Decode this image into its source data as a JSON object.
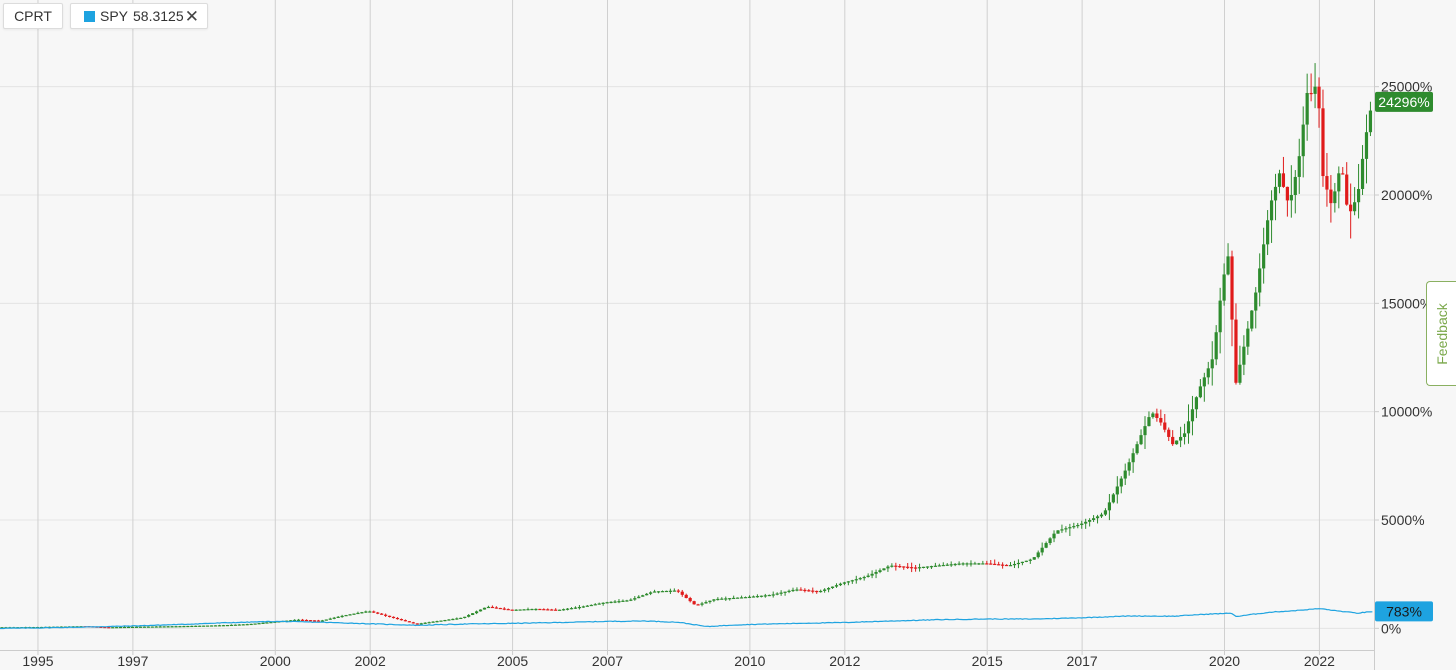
{
  "header": {
    "primary_symbol": "CPRT",
    "compare_symbol": "SPY",
    "compare_value": "58.3125",
    "compare_color": "#1ea3e0",
    "close_icon": "close-icon"
  },
  "feedback_label": "Feedback",
  "colors": {
    "up": "#2e8b2e",
    "down": "#e01b1b",
    "spy_line": "#1ea3e0",
    "grid": "#e4e4e4",
    "vgrid": "#d0d0d0",
    "axis": "#cccccc",
    "text": "#333333"
  },
  "chart_data": {
    "type": "candlestick",
    "series": [
      {
        "name": "CPRT",
        "last_label": "24296%",
        "last_value": 24296
      },
      {
        "name": "SPY",
        "last_label": "783%",
        "last_value": 783
      }
    ],
    "x_ticks": [
      "1995",
      "1997",
      "2000",
      "2002",
      "2005",
      "2007",
      "2010",
      "2012",
      "2015",
      "2017",
      "2020",
      "2022"
    ],
    "x_tick_years": [
      1995.0,
      1997.0,
      2000.0,
      2002.0,
      2005.0,
      2007.0,
      2010.0,
      2012.0,
      2015.0,
      2017.0,
      2020.0,
      2022.0
    ],
    "x_range": [
      1994.2,
      2023.15
    ],
    "y_ticks": [
      "0%",
      "5000%",
      "10000%",
      "15000%",
      "20000%",
      "25000%"
    ],
    "y_tick_values": [
      0,
      5000,
      10000,
      15000,
      20000,
      25000
    ],
    "y_range": [
      -1000,
      29000
    ],
    "cprt_path": [
      [
        1994.2,
        50
      ],
      [
        1995.0,
        60
      ],
      [
        1996.0,
        100
      ],
      [
        1996.5,
        50
      ],
      [
        1997.0,
        70
      ],
      [
        1998.0,
        100
      ],
      [
        1999.0,
        150
      ],
      [
        1999.5,
        200
      ],
      [
        2000.0,
        300
      ],
      [
        2000.5,
        400
      ],
      [
        2001.0,
        350
      ],
      [
        2001.5,
        600
      ],
      [
        2002.0,
        800
      ],
      [
        2002.5,
        500
      ],
      [
        2003.0,
        200
      ],
      [
        2003.5,
        350
      ],
      [
        2004.0,
        500
      ],
      [
        2004.5,
        1000
      ],
      [
        2005.0,
        850
      ],
      [
        2005.5,
        900
      ],
      [
        2006.0,
        850
      ],
      [
        2006.5,
        1000
      ],
      [
        2007.0,
        1200
      ],
      [
        2007.5,
        1300
      ],
      [
        2008.0,
        1700
      ],
      [
        2008.5,
        1750
      ],
      [
        2008.9,
        1050
      ],
      [
        2009.3,
        1350
      ],
      [
        2010.0,
        1450
      ],
      [
        2010.5,
        1550
      ],
      [
        2011.0,
        1800
      ],
      [
        2011.5,
        1700
      ],
      [
        2012.0,
        2100
      ],
      [
        2012.5,
        2400
      ],
      [
        2013.0,
        2900
      ],
      [
        2013.5,
        2800
      ],
      [
        2014.0,
        2900
      ],
      [
        2014.5,
        3000
      ],
      [
        2015.0,
        3000
      ],
      [
        2015.5,
        2900
      ],
      [
        2016.0,
        3200
      ],
      [
        2016.5,
        4500
      ],
      [
        2017.0,
        4800
      ],
      [
        2017.5,
        5300
      ],
      [
        2018.0,
        7500
      ],
      [
        2018.5,
        10000
      ],
      [
        2018.7,
        9500
      ],
      [
        2018.95,
        8500
      ],
      [
        2019.2,
        9000
      ],
      [
        2019.5,
        11000
      ],
      [
        2019.8,
        12500
      ],
      [
        2020.0,
        16000
      ],
      [
        2020.15,
        17500
      ],
      [
        2020.25,
        11000
      ],
      [
        2020.5,
        13500
      ],
      [
        2020.7,
        15500
      ],
      [
        2021.0,
        19500
      ],
      [
        2021.2,
        21000
      ],
      [
        2021.4,
        19500
      ],
      [
        2021.6,
        21500
      ],
      [
        2021.8,
        25000
      ],
      [
        2021.9,
        24500
      ],
      [
        2022.0,
        25500
      ],
      [
        2022.1,
        21000
      ],
      [
        2022.3,
        19500
      ],
      [
        2022.5,
        21500
      ],
      [
        2022.65,
        19000
      ],
      [
        2022.85,
        20000
      ],
      [
        2023.0,
        22500
      ],
      [
        2023.15,
        24296
      ]
    ],
    "spy_path": [
      [
        1994.2,
        0
      ],
      [
        1995.0,
        20
      ],
      [
        1996.0,
        60
      ],
      [
        1997.0,
        110
      ],
      [
        1998.0,
        180
      ],
      [
        1999.0,
        260
      ],
      [
        2000.0,
        320
      ],
      [
        2001.0,
        280
      ],
      [
        2002.0,
        210
      ],
      [
        2003.0,
        140
      ],
      [
        2004.0,
        200
      ],
      [
        2005.0,
        230
      ],
      [
        2006.0,
        270
      ],
      [
        2007.0,
        320
      ],
      [
        2007.8,
        340
      ],
      [
        2008.5,
        280
      ],
      [
        2009.1,
        80
      ],
      [
        2009.6,
        150
      ],
      [
        2010.0,
        180
      ],
      [
        2011.0,
        230
      ],
      [
        2012.0,
        270
      ],
      [
        2013.0,
        340
      ],
      [
        2014.0,
        400
      ],
      [
        2015.0,
        430
      ],
      [
        2016.0,
        430
      ],
      [
        2017.0,
        490
      ],
      [
        2018.0,
        570
      ],
      [
        2018.95,
        560
      ],
      [
        2019.5,
        640
      ],
      [
        2020.15,
        700
      ],
      [
        2020.25,
        540
      ],
      [
        2020.6,
        650
      ],
      [
        2021.0,
        750
      ],
      [
        2021.5,
        820
      ],
      [
        2022.0,
        910
      ],
      [
        2022.4,
        800
      ],
      [
        2022.8,
        700
      ],
      [
        2023.15,
        783
      ]
    ]
  }
}
